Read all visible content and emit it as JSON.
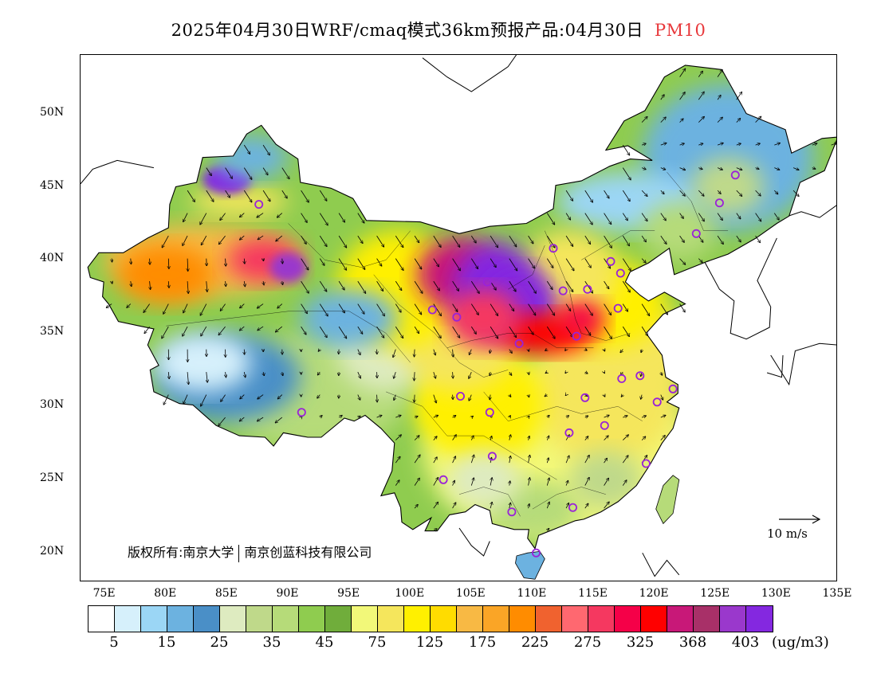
{
  "header": {
    "title_main": "2025年04月30日WRF/cmaq模式36km预报产品:04月30日",
    "pollutant": "PM10",
    "pollutant_color": "#e8383b"
  },
  "map": {
    "lat_labels": [
      "50N",
      "45N",
      "40N",
      "35N",
      "30N",
      "25N",
      "20N"
    ],
    "lon_labels": [
      "75E",
      "80E",
      "85E",
      "90E",
      "95E",
      "100E",
      "105E",
      "110E",
      "115E",
      "120E",
      "125E",
      "130E",
      "135E"
    ],
    "copyright_left": "版权所有:南京大学",
    "copyright_right": "南京创蓝科技有限公司",
    "wind_reference": "10 m/s"
  },
  "legend": {
    "colors": [
      "#ffffff",
      "#d6f0fb",
      "#9bd6f5",
      "#6cb2e0",
      "#4a8fc7",
      "#deebc0",
      "#bfd98a",
      "#b6db79",
      "#8fcc4f",
      "#70ad3b",
      "#f2f879",
      "#f5e65c",
      "#fff000",
      "#ffdc00",
      "#f8b944",
      "#faa526",
      "#ff8c00",
      "#f0622f",
      "#ff6870",
      "#f53860",
      "#f50048",
      "#ff0000",
      "#c81878",
      "#a83068",
      "#9a38cc",
      "#8428e0"
    ],
    "labels": [
      "5",
      "15",
      "25",
      "35",
      "45",
      "75",
      "125",
      "175",
      "225",
      "275",
      "325",
      "368",
      "403"
    ],
    "units": "(ug/m3)"
  },
  "stations": [
    {
      "lon": 87.6,
      "lat": 43.8
    },
    {
      "lon": 91.1,
      "lat": 29.6
    },
    {
      "lon": 101.8,
      "lat": 36.6
    },
    {
      "lon": 103.8,
      "lat": 36.1
    },
    {
      "lon": 106.3,
      "lat": 38.5
    },
    {
      "lon": 111.7,
      "lat": 40.8
    },
    {
      "lon": 112.5,
      "lat": 37.9
    },
    {
      "lon": 114.5,
      "lat": 38.0
    },
    {
      "lon": 116.4,
      "lat": 39.9
    },
    {
      "lon": 117.2,
      "lat": 39.1
    },
    {
      "lon": 117.0,
      "lat": 36.7
    },
    {
      "lon": 113.6,
      "lat": 34.8
    },
    {
      "lon": 108.9,
      "lat": 34.3
    },
    {
      "lon": 104.1,
      "lat": 30.7
    },
    {
      "lon": 106.5,
      "lat": 29.6
    },
    {
      "lon": 114.3,
      "lat": 30.6
    },
    {
      "lon": 117.3,
      "lat": 31.9
    },
    {
      "lon": 118.8,
      "lat": 32.1
    },
    {
      "lon": 120.2,
      "lat": 30.3
    },
    {
      "lon": 121.5,
      "lat": 31.2
    },
    {
      "lon": 115.9,
      "lat": 28.7
    },
    {
      "lon": 113.0,
      "lat": 28.2
    },
    {
      "lon": 106.7,
      "lat": 26.6
    },
    {
      "lon": 102.7,
      "lat": 25.0
    },
    {
      "lon": 108.3,
      "lat": 22.8
    },
    {
      "lon": 113.3,
      "lat": 23.1
    },
    {
      "lon": 119.3,
      "lat": 26.1
    },
    {
      "lon": 110.3,
      "lat": 20.0
    },
    {
      "lon": 123.4,
      "lat": 41.8
    },
    {
      "lon": 125.3,
      "lat": 43.9
    },
    {
      "lon": 126.6,
      "lat": 45.8
    }
  ]
}
